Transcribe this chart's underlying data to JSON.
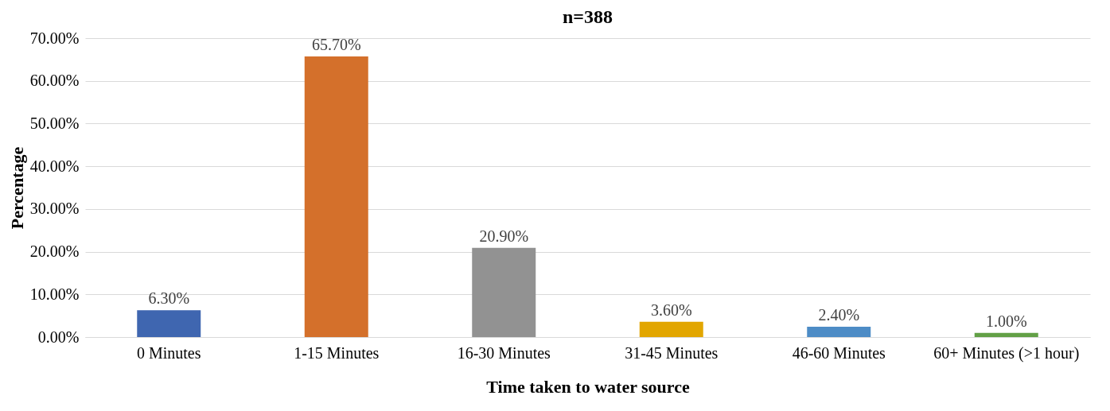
{
  "chart_data": {
    "type": "bar",
    "title": "n=388",
    "xlabel": "Time taken to water source",
    "ylabel": "Percentage",
    "categories": [
      "0 Minutes",
      "1-15 Minutes",
      "16-30 Minutes",
      "31-45 Minutes",
      "46-60 Minutes",
      "60+ Minutes (>1 hour)"
    ],
    "values": [
      6.3,
      65.7,
      20.9,
      3.6,
      2.4,
      1.0
    ],
    "colors": [
      "#3f66b0",
      "#d4702b",
      "#929292",
      "#e2a600",
      "#4d8cc6",
      "#62a046"
    ],
    "value_labels": [
      "6.30%",
      "65.70%",
      "20.90%",
      "3.60%",
      "2.40%",
      "1.00%"
    ],
    "ylim": [
      0,
      70
    ],
    "yticks": [
      {
        "value": 0,
        "label": "0.00%"
      },
      {
        "value": 10,
        "label": "10.00%"
      },
      {
        "value": 20,
        "label": "20.00%"
      },
      {
        "value": 30,
        "label": "30.00%"
      },
      {
        "value": 40,
        "label": "40.00%"
      },
      {
        "value": 50,
        "label": "50.00%"
      },
      {
        "value": 60,
        "label": "60.00%"
      },
      {
        "value": 70,
        "label": "70.00%"
      }
    ],
    "grid": "y",
    "legend": false
  }
}
